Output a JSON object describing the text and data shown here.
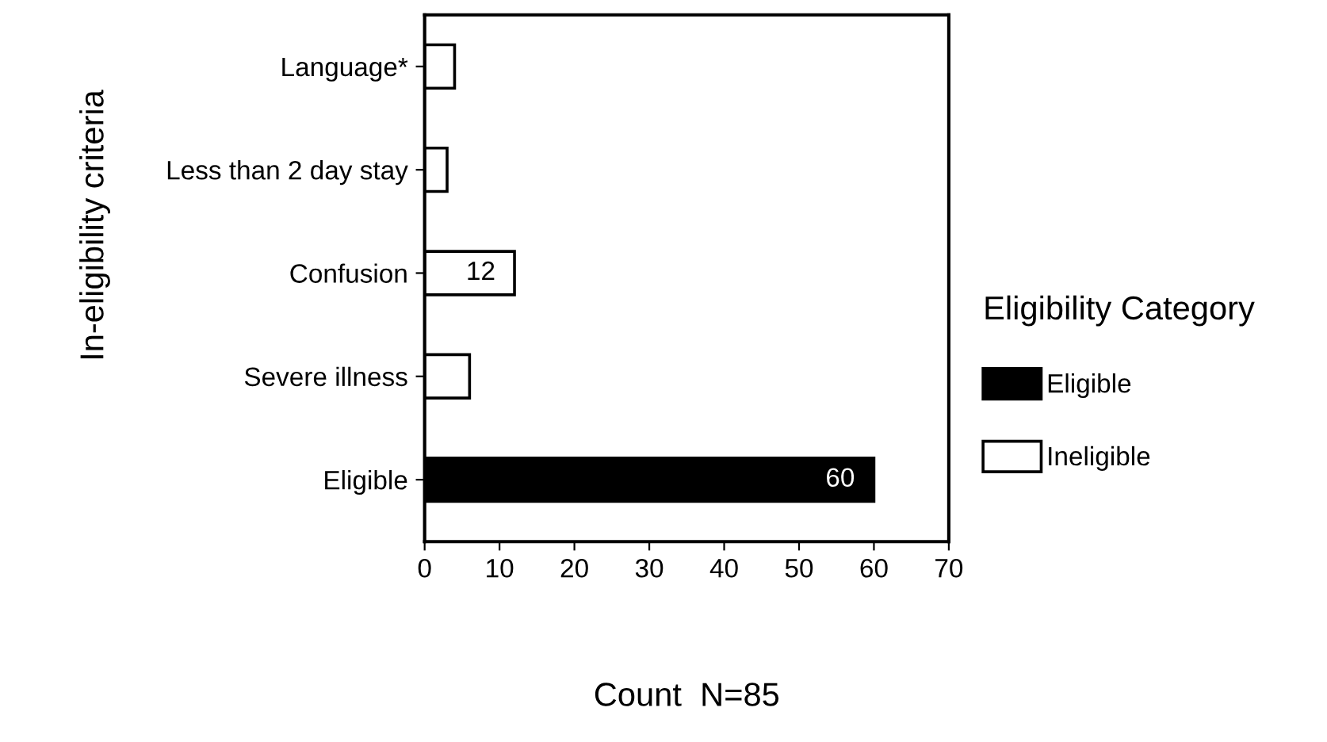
{
  "chart_data": {
    "type": "bar",
    "orientation": "horizontal",
    "categories": [
      "Language*",
      "Less than 2 day stay",
      "Confusion",
      "Severe illness",
      "Eligible"
    ],
    "series": [
      {
        "name": "Eligible",
        "color": "#000000",
        "values": [
          null,
          null,
          null,
          null,
          60
        ],
        "value_labels": [
          null,
          null,
          null,
          null,
          "60"
        ]
      },
      {
        "name": "Ineligible",
        "color": "#ffffff",
        "values": [
          4,
          3,
          12,
          6,
          null
        ],
        "value_labels": [
          null,
          null,
          "12",
          null,
          null
        ]
      }
    ],
    "xlabel": "Count  N=85",
    "ylabel": "In-eligibility criteria",
    "legend_title": "Eligibility Category",
    "xlim": [
      0,
      70
    ],
    "xticks": [
      0,
      10,
      20,
      30,
      40,
      50,
      60,
      70
    ],
    "grid": false,
    "legend": "right"
  }
}
